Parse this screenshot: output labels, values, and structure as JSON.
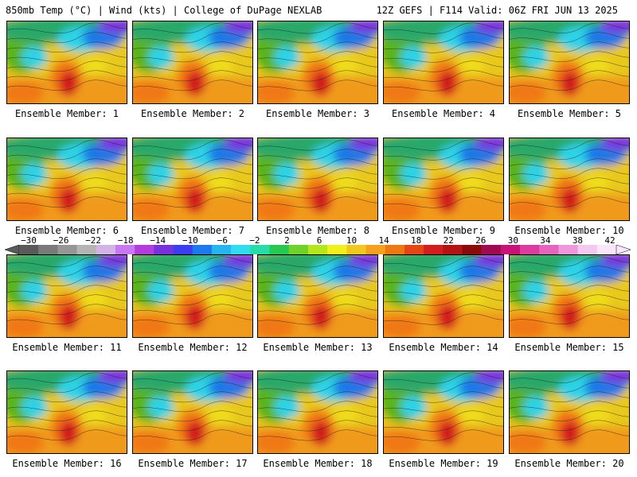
{
  "header": {
    "left": "850mb Temp (°C) | Wind (kts) | College of DuPage NEXLAB",
    "right": "12Z GEFS | F114 Valid: 06Z FRI JUN 13 2025"
  },
  "members": [
    "Ensemble Member: 1",
    "Ensemble Member: 2",
    "Ensemble Member: 3",
    "Ensemble Member: 4",
    "Ensemble Member: 5",
    "Ensemble Member: 6",
    "Ensemble Member: 7",
    "Ensemble Member: 8",
    "Ensemble Member: 9",
    "Ensemble Member: 10",
    "Ensemble Member: 11",
    "Ensemble Member: 12",
    "Ensemble Member: 13",
    "Ensemble Member: 14",
    "Ensemble Member: 15",
    "Ensemble Member: 16",
    "Ensemble Member: 17",
    "Ensemble Member: 18",
    "Ensemble Member: 19",
    "Ensemble Member: 20"
  ],
  "colorbar": {
    "labels": [
      "−30",
      "−26",
      "−22",
      "−18",
      "−14",
      "−10",
      "−6",
      "−2",
      "2",
      "6",
      "10",
      "14",
      "18",
      "22",
      "26",
      "30",
      "34",
      "38",
      "42"
    ],
    "colors": [
      "#5a5a5a",
      "#7a7a7a",
      "#969696",
      "#b4b4b4",
      "#d2b4e6",
      "#c878f0",
      "#b43cdc",
      "#7832dc",
      "#3c3cf0",
      "#1e78f0",
      "#28b4f0",
      "#32dcf0",
      "#28dcaa",
      "#28c850",
      "#6ed228",
      "#b4e61e",
      "#f0f01e",
      "#f0c81e",
      "#f5a01e",
      "#f07814",
      "#e64614",
      "#d21e1e",
      "#b41414",
      "#8c0a0a",
      "#a00a50",
      "#c81478",
      "#dc3ca0",
      "#e664be",
      "#f096dc",
      "#f5c8f0",
      "#fae6fa"
    ]
  }
}
